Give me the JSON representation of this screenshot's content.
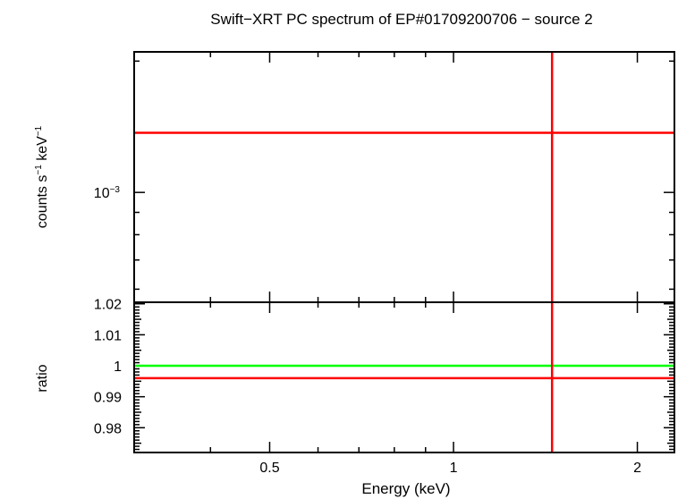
{
  "chart_data": [
    {
      "type": "line",
      "title": "Swift−XRT PC spectrum of EP#01709200706 − source 2",
      "xlabel": "",
      "ylabel_base": "counts s",
      "ylabel_exp1": "−1",
      "ylabel_mid": " keV",
      "ylabel_exp2": "−1",
      "xscale": "log",
      "yscale": "log",
      "xlim": [
        0.3,
        2.3
      ],
      "ylim": [
        0.00056,
        0.0021
      ],
      "yticks_major": [
        {
          "value": 0.001,
          "base": "10",
          "exp": "−3"
        }
      ],
      "series": [
        {
          "role": "model",
          "color": "#000000",
          "x": [
            0.3,
            2.3
          ],
          "y": [
            0.00137,
            0.00137
          ]
        },
        {
          "role": "data",
          "color": "#ff0000",
          "x": [
            0.3,
            2.3
          ],
          "y": [
            0.00137,
            0.00137
          ]
        },
        {
          "role": "data-errorbar",
          "color": "#ff0000",
          "x": [
            1.45,
            1.45
          ],
          "y": [
            0.00056,
            0.0021
          ]
        }
      ]
    },
    {
      "type": "line",
      "xlabel": "Energy (keV)",
      "ylabel": "ratio",
      "xscale": "log",
      "xlim": [
        0.3,
        2.3
      ],
      "ylim": [
        0.972,
        1.0205
      ],
      "xticks": [
        {
          "value": 0.5,
          "label": "0.5"
        },
        {
          "value": 1,
          "label": "1"
        },
        {
          "value": 2,
          "label": "2"
        }
      ],
      "yticks": [
        {
          "value": 0.98,
          "label": "0.98"
        },
        {
          "value": 0.99,
          "label": "0.99"
        },
        {
          "value": 1,
          "label": "1"
        },
        {
          "value": 1.01,
          "label": "1.01"
        },
        {
          "value": 1.02,
          "label": "1.02"
        }
      ],
      "series": [
        {
          "role": "unity",
          "color": "#00ff00",
          "x": [
            0.3,
            2.3
          ],
          "y": [
            1.0,
            1.0
          ]
        },
        {
          "role": "ratio",
          "color": "#ff0000",
          "x": [
            0.3,
            2.3
          ],
          "y": [
            0.996,
            0.996
          ]
        },
        {
          "role": "ratio-errorbar",
          "color": "#ff0000",
          "x": [
            1.45,
            1.45
          ],
          "y": [
            0.972,
            1.0205
          ]
        }
      ]
    }
  ]
}
